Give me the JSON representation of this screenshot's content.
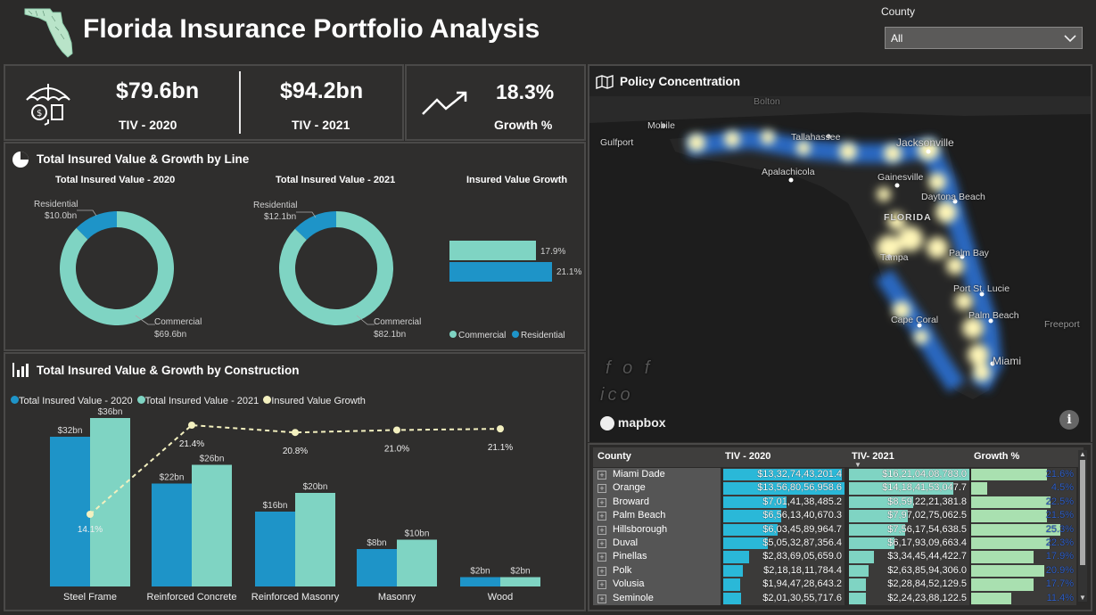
{
  "header": {
    "title": "Florida Insurance Portfolio Analysis",
    "filter_label": "County",
    "filter_value": "All"
  },
  "kpis": {
    "tiv_2020": {
      "value": "$79.6bn",
      "label": "TIV - 2020"
    },
    "tiv_2021": {
      "value": "$94.2bn",
      "label": "TIV - 2021"
    },
    "growth": {
      "value": "18.3%",
      "label": "Growth %"
    }
  },
  "line_panel": {
    "title": "Total Insured Value & Growth by Line",
    "donut_2020": {
      "title": "Total Insured Value - 2020",
      "res_label": "Residential",
      "res_value": "$10.0bn",
      "com_label": "Commercial",
      "com_value": "$69.6bn"
    },
    "donut_2021": {
      "title": "Total Insured Value - 2021",
      "res_label": "Residential",
      "res_value": "$12.1bn",
      "com_label": "Commercial",
      "com_value": "$82.1bn"
    },
    "growth_bars": {
      "title": "Insured Value Growth",
      "com_label": "17.9%",
      "res_label": "21.1%",
      "legend_com": "Commercial",
      "legend_res": "Residential"
    }
  },
  "construction_panel": {
    "title": "Total Insured Value & Growth by Construction",
    "legend": [
      "Total Insured Value - 2020",
      "Total Insured Value - 2021",
      "Insured Value Growth"
    ]
  },
  "map_panel": {
    "title": "Policy Concentration",
    "attribution": "mapbox",
    "labels": [
      "Mobile",
      "Gulfport",
      "Tallahassee",
      "Jacksonville",
      "Apalachicola",
      "Gainesville",
      "Daytona Beach",
      "FLORIDA",
      "Tampa",
      "Palm Bay",
      "Port St. Lucie",
      "Cape Coral",
      "Palm Beach",
      "Freeport",
      "Miami",
      "f o f",
      "ico",
      "Bolton"
    ]
  },
  "table": {
    "headers": [
      "County",
      "TIV - 2020",
      "TIV- 2021",
      "Growth %"
    ],
    "rows": [
      {
        "county": "Miami Dade",
        "tiv2020": "$13,32,74,43,201.4",
        "tiv2021": "$16,21,04,08,783.0",
        "growth": "21.6%",
        "f2020": 0.98,
        "f2021": 1.0,
        "g": 21.6
      },
      {
        "county": "Orange",
        "tiv2020": "$13,56,80,56,958.6",
        "tiv2021": "$14,18,41,53,047.7",
        "growth": "4.5%",
        "f2020": 1.0,
        "f2021": 0.87,
        "g": 4.5
      },
      {
        "county": "Broward",
        "tiv2020": "$7,01,41,38,485.2",
        "tiv2021": "$8,59,22,21,381.8",
        "growth": "22.5%",
        "f2020": 0.52,
        "f2021": 0.53,
        "g": 22.5
      },
      {
        "county": "Palm Beach",
        "tiv2020": "$6,56,13,40,670.3",
        "tiv2021": "$7,97,02,75,062.5",
        "growth": "21.5%",
        "f2020": 0.48,
        "f2021": 0.49,
        "g": 21.5
      },
      {
        "county": "Hillsborough",
        "tiv2020": "$6,03,45,89,964.7",
        "tiv2021": "$7,56,17,54,638.5",
        "growth": "25.3%",
        "f2020": 0.45,
        "f2021": 0.47,
        "g": 25.3
      },
      {
        "county": "Duval",
        "tiv2020": "$5,05,32,87,356.4",
        "tiv2021": "$6,17,93,09,663.4",
        "growth": "22.3%",
        "f2020": 0.37,
        "f2021": 0.38,
        "g": 22.3
      },
      {
        "county": "Pinellas",
        "tiv2020": "$2,83,69,05,659.0",
        "tiv2021": "$3,34,45,44,422.7",
        "growth": "17.9%",
        "f2020": 0.21,
        "f2021": 0.21,
        "g": 17.9
      },
      {
        "county": "Polk",
        "tiv2020": "$2,18,18,11,784.4",
        "tiv2021": "$2,63,85,94,306.0",
        "growth": "20.9%",
        "f2020": 0.16,
        "f2021": 0.16,
        "g": 20.9
      },
      {
        "county": "Volusia",
        "tiv2020": "$1,94,47,28,643.2",
        "tiv2021": "$2,28,84,52,129.5",
        "growth": "17.7%",
        "f2020": 0.14,
        "f2021": 0.14,
        "g": 17.7
      },
      {
        "county": "Seminole",
        "tiv2020": "$2,01,30,55,717.6",
        "tiv2021": "$2,24,23,88,122.5",
        "growth": "11.4%",
        "f2020": 0.15,
        "f2021": 0.14,
        "g": 11.4
      }
    ]
  },
  "chart_data": [
    {
      "type": "pie",
      "title": "Total Insured Value - 2020",
      "categories": [
        "Residential",
        "Commercial"
      ],
      "values": [
        10.0,
        69.6
      ]
    },
    {
      "type": "pie",
      "title": "Total Insured Value - 2021",
      "categories": [
        "Residential",
        "Commercial"
      ],
      "values": [
        12.1,
        82.1
      ]
    },
    {
      "type": "bar",
      "title": "Insured Value Growth",
      "categories": [
        "Commercial",
        "Residential"
      ],
      "values": [
        17.9,
        21.1
      ]
    },
    {
      "type": "bar",
      "title": "Total Insured Value & Growth by Construction",
      "categories": [
        "Steel Frame",
        "Reinforced Concrete",
        "Reinforced Masonry",
        "Masonry",
        "Wood"
      ],
      "series": [
        {
          "name": "Total Insured Value - 2020",
          "values": [
            32,
            22,
            16,
            8,
            2
          ],
          "labels": [
            "$32bn",
            "$22bn",
            "$16bn",
            "$8bn",
            "$2bn"
          ]
        },
        {
          "name": "Total Insured Value - 2021",
          "values": [
            36,
            26,
            20,
            10,
            2
          ],
          "labels": [
            "$36bn",
            "$26bn",
            "$20bn",
            "$10bn",
            "$2bn"
          ]
        },
        {
          "name": "Insured Value Growth",
          "type": "line",
          "values": [
            14.1,
            21.4,
            20.8,
            21.0,
            21.1
          ],
          "labels": [
            "14.1%",
            "21.4%",
            "20.8%",
            "21.0%",
            "21.1%"
          ]
        }
      ],
      "colors": {
        "tiv2020": "#1e94c8",
        "tiv2021": "#7fd4c3",
        "growth": "#f3f0bf"
      }
    }
  ]
}
